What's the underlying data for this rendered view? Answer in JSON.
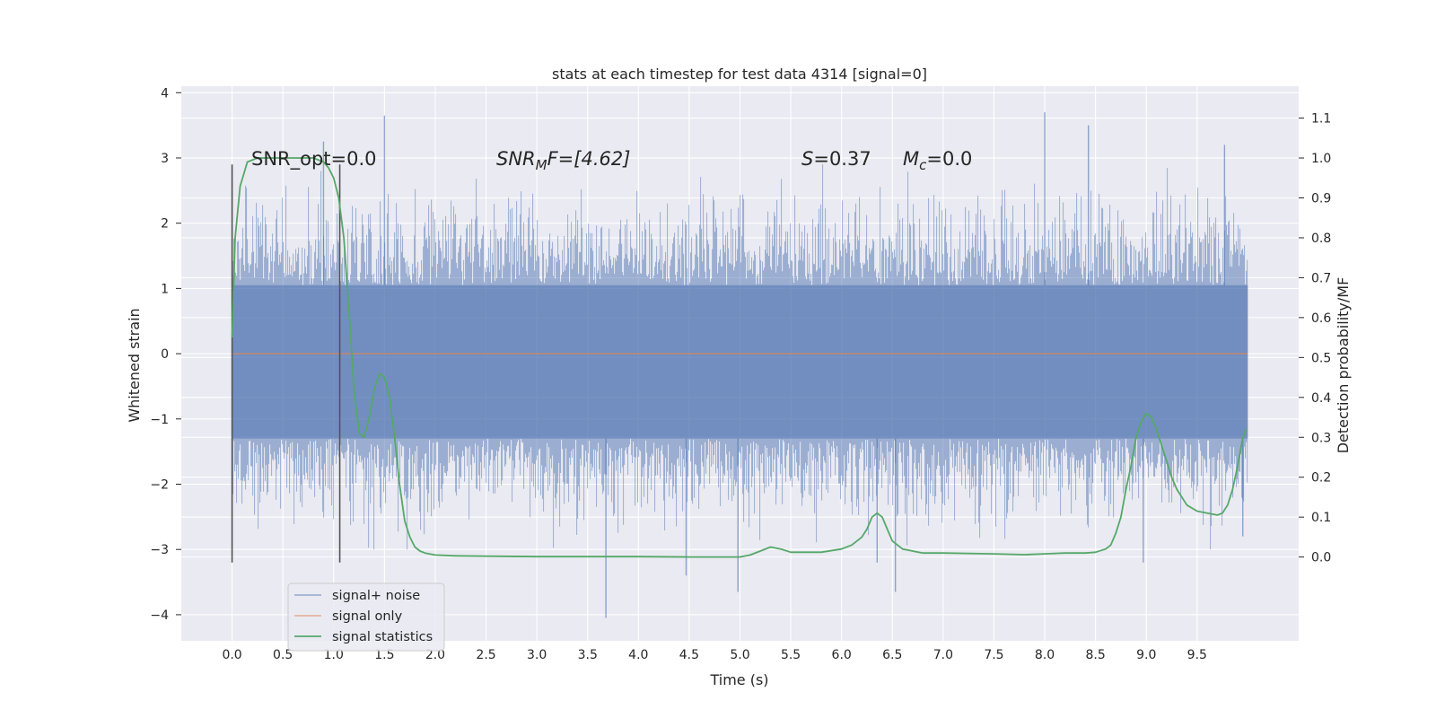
{
  "chart_data": {
    "type": "line",
    "title": "stats at each timestep for test data 4314 [signal=0]",
    "xlabel": "Time (s)",
    "ylabel": "Whitened strain",
    "y2label": "Detection probability/MF",
    "xlim": [
      -0.5,
      10.5
    ],
    "ylim": [
      -4.4,
      4.1
    ],
    "y2lim": [
      -0.21,
      1.18
    ],
    "x_ticks": [
      "0.0",
      "0.5",
      "1.0",
      "1.5",
      "2.0",
      "2.5",
      "3.0",
      "3.5",
      "4.0",
      "4.5",
      "5.0",
      "5.5",
      "6.0",
      "6.5",
      "7.0",
      "7.5",
      "8.0",
      "8.5",
      "9.0",
      "9.5"
    ],
    "y_ticks": [
      "4",
      "3",
      "2",
      "1",
      "0",
      "−1",
      "−2",
      "−3",
      "−4"
    ],
    "y2_ticks": [
      "1.1",
      "1.0",
      "0.9",
      "0.8",
      "0.7",
      "0.6",
      "0.5",
      "0.4",
      "0.3",
      "0.2",
      "0.1",
      "0.0"
    ],
    "grid": true,
    "legend_position": "lower-left",
    "colors": {
      "background": "#eaeaf2",
      "grid": "#ffffff",
      "noise": "#4c72b0",
      "signal_only": "#dd8452",
      "statistics": "#55a868",
      "vline": "#555555"
    },
    "annotations": {
      "snr_opt": "SNR_opt=0.0",
      "snr_mf_prefix": "SNR",
      "snr_mf_sub": "M",
      "snr_mf_suffix": "F=[4.62]",
      "s_var": "S",
      "s_value": "=0.37",
      "mc_var": "M",
      "mc_sub": "c",
      "mc_value": "=0.0"
    },
    "vertical_lines_x": [
      0.0,
      1.06
    ],
    "series": [
      {
        "name": "signal+ noise",
        "kind": "noise-band",
        "x_range": [
          0.0,
          10.0
        ],
        "core_band": [
          -1.3,
          1.05
        ],
        "extreme_spikes": [
          {
            "x": 1.5,
            "y": 3.65
          },
          {
            "x": 8.0,
            "y": 3.7
          },
          {
            "x": 0.9,
            "y": 3.25
          },
          {
            "x": 8.43,
            "y": 3.5
          },
          {
            "x": 9.77,
            "y": 3.2
          },
          {
            "x": 3.68,
            "y": -4.05
          },
          {
            "x": 4.47,
            "y": -3.4
          },
          {
            "x": 4.98,
            "y": -3.65
          },
          {
            "x": 6.53,
            "y": -3.65
          },
          {
            "x": 6.35,
            "y": -3.2
          },
          {
            "x": 8.97,
            "y": -3.2
          },
          {
            "x": 9.95,
            "y": -2.8
          }
        ]
      },
      {
        "name": "signal only",
        "x": [
          0.0,
          10.0
        ],
        "values": [
          0.0,
          0.0
        ]
      },
      {
        "name": "signal statistics",
        "axis": "right",
        "x": [
          0.0,
          0.03,
          0.08,
          0.15,
          0.25,
          0.4,
          0.6,
          0.8,
          0.9,
          0.95,
          1.0,
          1.05,
          1.1,
          1.15,
          1.2,
          1.25,
          1.3,
          1.35,
          1.4,
          1.45,
          1.5,
          1.55,
          1.6,
          1.65,
          1.7,
          1.75,
          1.8,
          1.85,
          1.9,
          2.0,
          2.2,
          2.5,
          3.0,
          3.5,
          4.0,
          4.5,
          5.0,
          5.1,
          5.2,
          5.3,
          5.4,
          5.5,
          5.8,
          6.0,
          6.1,
          6.2,
          6.25,
          6.3,
          6.35,
          6.4,
          6.45,
          6.5,
          6.6,
          6.8,
          7.0,
          7.5,
          7.8,
          8.0,
          8.2,
          8.4,
          8.5,
          8.6,
          8.65,
          8.7,
          8.75,
          8.8,
          8.85,
          8.9,
          8.95,
          9.0,
          9.05,
          9.1,
          9.15,
          9.2,
          9.25,
          9.3,
          9.4,
          9.5,
          9.6,
          9.7,
          9.75,
          9.8,
          9.85,
          9.9,
          9.95,
          9.98
        ],
        "values": [
          0.55,
          0.8,
          0.93,
          0.99,
          1.0,
          1.0,
          1.0,
          1.0,
          0.99,
          0.975,
          0.95,
          0.9,
          0.8,
          0.62,
          0.42,
          0.31,
          0.3,
          0.35,
          0.42,
          0.46,
          0.45,
          0.4,
          0.3,
          0.18,
          0.09,
          0.05,
          0.025,
          0.015,
          0.01,
          0.005,
          0.003,
          0.002,
          0.001,
          0.001,
          0.001,
          0.0,
          0.0,
          0.005,
          0.015,
          0.025,
          0.02,
          0.012,
          0.012,
          0.02,
          0.03,
          0.05,
          0.07,
          0.1,
          0.11,
          0.1,
          0.07,
          0.04,
          0.02,
          0.01,
          0.01,
          0.008,
          0.006,
          0.008,
          0.01,
          0.01,
          0.012,
          0.02,
          0.03,
          0.06,
          0.1,
          0.17,
          0.23,
          0.3,
          0.34,
          0.36,
          0.35,
          0.32,
          0.28,
          0.24,
          0.2,
          0.17,
          0.13,
          0.115,
          0.11,
          0.105,
          0.11,
          0.13,
          0.17,
          0.23,
          0.3,
          0.32
        ]
      }
    ]
  }
}
